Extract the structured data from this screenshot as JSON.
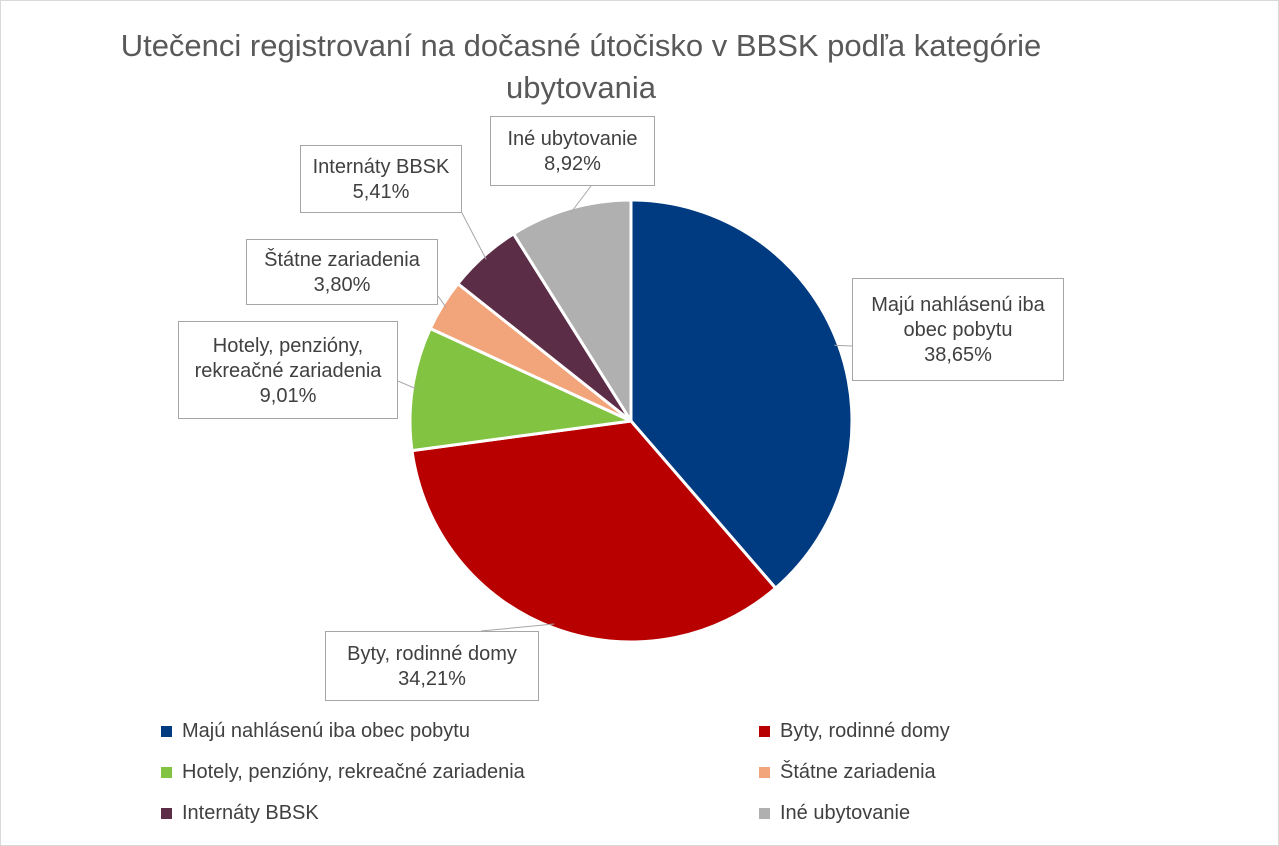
{
  "chart_data": {
    "type": "pie",
    "title": "Utečenci registrovaní na dočasné útočisko v BBSK podľa kategórie ubytovania",
    "start_angle_deg": 0,
    "slices": [
      {
        "label": "Majú nahlásenú iba obec pobytu",
        "callout": [
          "Majú nahlásenú iba",
          "obec pobytu"
        ],
        "value": 38.65,
        "display": "38,65%",
        "color": "#003a80"
      },
      {
        "label": "Byty, rodinné domy",
        "callout": [
          "Byty, rodinné domy"
        ],
        "value": 34.21,
        "display": "34,21%",
        "color": "#b80000"
      },
      {
        "label": "Hotely, penzióny, rekreačné zariadenia",
        "callout": [
          "Hotely, penzióny,",
          "rekreačné zariadenia"
        ],
        "value": 9.01,
        "display": "9,01%",
        "color": "#82c341"
      },
      {
        "label": "Štátne zariadenia",
        "callout": [
          "Štátne zariadenia"
        ],
        "value": 3.8,
        "display": "3,80%",
        "color": "#f2a47a"
      },
      {
        "label": "Internáty BBSK",
        "callout": [
          "Internáty BBSK"
        ],
        "value": 5.41,
        "display": "5,41%",
        "color": "#5c2d46"
      },
      {
        "label": "Iné ubytovanie",
        "callout": [
          "Iné ubytovanie"
        ],
        "value": 8.92,
        "display": "8,92%",
        "color": "#b0b0b0"
      }
    ],
    "legend_position": "bottom"
  }
}
